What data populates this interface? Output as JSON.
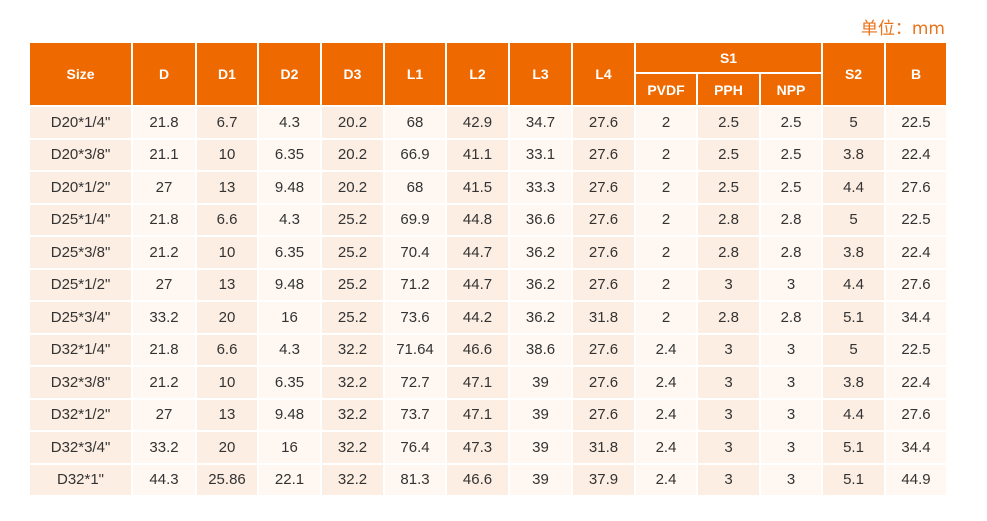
{
  "unit_label": "单位：mm",
  "headers": {
    "size": "Size",
    "d": "D",
    "d1": "D1",
    "d2": "D2",
    "d3": "D3",
    "l1": "L1",
    "l2": "L2",
    "l3": "L3",
    "l4": "L4",
    "s1": "S1",
    "pvdf": "PVDF",
    "pph": "PPH",
    "npp": "NPP",
    "s2": "S2",
    "b": "B"
  },
  "rows": [
    [
      "D20*1/4\"",
      "21.8",
      "6.7",
      "4.3",
      "20.2",
      "68",
      "42.9",
      "34.7",
      "27.6",
      "2",
      "2.5",
      "2.5",
      "5",
      "22.5"
    ],
    [
      "D20*3/8\"",
      "21.1",
      "10",
      "6.35",
      "20.2",
      "66.9",
      "41.1",
      "33.1",
      "27.6",
      "2",
      "2.5",
      "2.5",
      "3.8",
      "22.4"
    ],
    [
      "D20*1/2\"",
      "27",
      "13",
      "9.48",
      "20.2",
      "68",
      "41.5",
      "33.3",
      "27.6",
      "2",
      "2.5",
      "2.5",
      "4.4",
      "27.6"
    ],
    [
      "D25*1/4\"",
      "21.8",
      "6.6",
      "4.3",
      "25.2",
      "69.9",
      "44.8",
      "36.6",
      "27.6",
      "2",
      "2.8",
      "2.8",
      "5",
      "22.5"
    ],
    [
      "D25*3/8\"",
      "21.2",
      "10",
      "6.35",
      "25.2",
      "70.4",
      "44.7",
      "36.2",
      "27.6",
      "2",
      "2.8",
      "2.8",
      "3.8",
      "22.4"
    ],
    [
      "D25*1/2\"",
      "27",
      "13",
      "9.48",
      "25.2",
      "71.2",
      "44.7",
      "36.2",
      "27.6",
      "2",
      "3",
      "3",
      "4.4",
      "27.6"
    ],
    [
      "D25*3/4\"",
      "33.2",
      "20",
      "16",
      "25.2",
      "73.6",
      "44.2",
      "36.2",
      "31.8",
      "2",
      "2.8",
      "2.8",
      "5.1",
      "34.4"
    ],
    [
      "D32*1/4\"",
      "21.8",
      "6.6",
      "4.3",
      "32.2",
      "71.64",
      "46.6",
      "38.6",
      "27.6",
      "2.4",
      "3",
      "3",
      "5",
      "22.5"
    ],
    [
      "D32*3/8\"",
      "21.2",
      "10",
      "6.35",
      "32.2",
      "72.7",
      "47.1",
      "39",
      "27.6",
      "2.4",
      "3",
      "3",
      "3.8",
      "22.4"
    ],
    [
      "D32*1/2\"",
      "27",
      "13",
      "9.48",
      "32.2",
      "73.7",
      "47.1",
      "39",
      "27.6",
      "2.4",
      "3",
      "3",
      "4.4",
      "27.6"
    ],
    [
      "D32*3/4\"",
      "33.2",
      "20",
      "16",
      "32.2",
      "76.4",
      "47.3",
      "39",
      "31.8",
      "2.4",
      "3",
      "3",
      "5.1",
      "34.4"
    ],
    [
      "D32*1\"",
      "44.3",
      "25.86",
      "22.1",
      "32.2",
      "81.3",
      "46.6",
      "39",
      "37.9",
      "2.4",
      "3",
      "3",
      "5.1",
      "44.9"
    ]
  ],
  "colors": {
    "header_bg": "#ee6a00",
    "header_text": "#ffffff",
    "row_odd_col": "#fdeee3",
    "row_even_col": "#fff8f2",
    "unit_text": "#e8731a"
  }
}
